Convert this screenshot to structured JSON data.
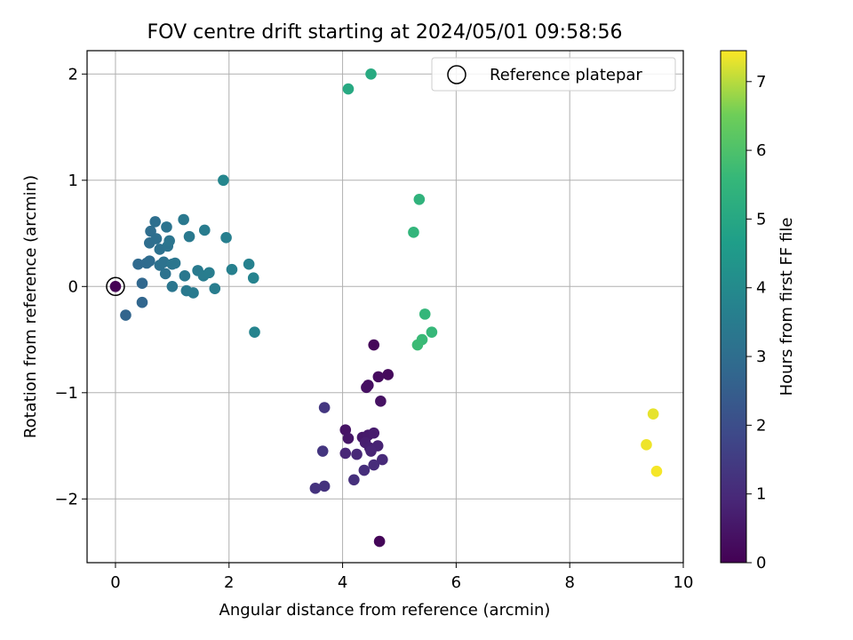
{
  "chart_data": {
    "type": "scatter",
    "title": "FOV centre drift starting at 2024/05/01 09:58:56",
    "xlabel": "Angular distance from reference (arcmin)",
    "ylabel": "Rotation from reference (arcmin)",
    "xlim": [
      -0.5,
      10
    ],
    "ylim": [
      -2.6,
      2.22
    ],
    "xticks": [
      0,
      2,
      4,
      6,
      8,
      10
    ],
    "xtick_labels": [
      "0",
      "2",
      "4",
      "6",
      "8",
      "10"
    ],
    "yticks": [
      -2,
      -1,
      0,
      1,
      2
    ],
    "ytick_labels": [
      "−2",
      "−1",
      "0",
      "1",
      "2"
    ],
    "grid": true,
    "legend": {
      "placement": "top-right",
      "entries": [
        "Reference platepar"
      ]
    },
    "reference_point": {
      "x": 0,
      "y": 0
    },
    "colorbar": {
      "label": "Hours from first FF file",
      "range": [
        0,
        7.45
      ],
      "ticks": [
        0,
        1,
        2,
        3,
        4,
        5,
        6,
        7
      ],
      "tick_labels": [
        "0",
        "1",
        "2",
        "3",
        "4",
        "5",
        "6",
        "7"
      ],
      "colormap": "viridis"
    },
    "points": [
      {
        "x": 0.0,
        "y": 0.0,
        "c": 0.0
      },
      {
        "x": 4.55,
        "y": -0.55,
        "c": 0.15
      },
      {
        "x": 4.8,
        "y": -0.83,
        "c": 0.2
      },
      {
        "x": 4.63,
        "y": -0.85,
        "c": 0.25
      },
      {
        "x": 4.45,
        "y": -0.93,
        "c": 0.3
      },
      {
        "x": 4.42,
        "y": -0.95,
        "c": 0.35
      },
      {
        "x": 4.67,
        "y": -1.08,
        "c": 0.4
      },
      {
        "x": 4.05,
        "y": -1.35,
        "c": 0.45
      },
      {
        "x": 4.1,
        "y": -1.43,
        "c": 0.5
      },
      {
        "x": 4.35,
        "y": -1.42,
        "c": 0.55
      },
      {
        "x": 4.45,
        "y": -1.4,
        "c": 0.6
      },
      {
        "x": 4.55,
        "y": -1.38,
        "c": 0.65
      },
      {
        "x": 4.4,
        "y": -1.47,
        "c": 0.7
      },
      {
        "x": 4.48,
        "y": -1.52,
        "c": 0.75
      },
      {
        "x": 4.62,
        "y": -1.5,
        "c": 0.8
      },
      {
        "x": 4.5,
        "y": -1.55,
        "c": 0.85
      },
      {
        "x": 4.05,
        "y": -1.57,
        "c": 0.9
      },
      {
        "x": 4.25,
        "y": -1.58,
        "c": 0.95
      },
      {
        "x": 4.7,
        "y": -1.63,
        "c": 1.0
      },
      {
        "x": 4.55,
        "y": -1.68,
        "c": 1.05
      },
      {
        "x": 4.38,
        "y": -1.73,
        "c": 1.1
      },
      {
        "x": 4.2,
        "y": -1.82,
        "c": 1.15
      },
      {
        "x": 3.68,
        "y": -1.88,
        "c": 1.2
      },
      {
        "x": 3.52,
        "y": -1.9,
        "c": 1.25
      },
      {
        "x": 3.65,
        "y": -1.55,
        "c": 1.3
      },
      {
        "x": 3.68,
        "y": -1.14,
        "c": 1.35
      },
      {
        "x": 4.65,
        "y": -2.4,
        "c": 0.1
      },
      {
        "x": 0.18,
        "y": -0.27,
        "c": 2.7
      },
      {
        "x": 0.47,
        "y": -0.15,
        "c": 2.75
      },
      {
        "x": 0.47,
        "y": 0.03,
        "c": 2.8
      },
      {
        "x": 0.4,
        "y": 0.21,
        "c": 2.85
      },
      {
        "x": 0.55,
        "y": 0.22,
        "c": 2.9
      },
      {
        "x": 0.6,
        "y": 0.24,
        "c": 2.95
      },
      {
        "x": 0.6,
        "y": 0.41,
        "c": 3.0
      },
      {
        "x": 0.62,
        "y": 0.52,
        "c": 3.0
      },
      {
        "x": 0.7,
        "y": 0.61,
        "c": 3.05
      },
      {
        "x": 0.72,
        "y": 0.45,
        "c": 3.05
      },
      {
        "x": 0.78,
        "y": 0.35,
        "c": 3.1
      },
      {
        "x": 0.78,
        "y": 0.2,
        "c": 3.1
      },
      {
        "x": 0.85,
        "y": 0.23,
        "c": 3.15
      },
      {
        "x": 0.88,
        "y": 0.12,
        "c": 3.15
      },
      {
        "x": 0.9,
        "y": 0.56,
        "c": 3.2
      },
      {
        "x": 0.92,
        "y": 0.38,
        "c": 3.2
      },
      {
        "x": 0.95,
        "y": 0.43,
        "c": 3.25
      },
      {
        "x": 1.0,
        "y": 0.21,
        "c": 3.25
      },
      {
        "x": 1.05,
        "y": 0.22,
        "c": 3.3
      },
      {
        "x": 1.0,
        "y": 0.0,
        "c": 3.3
      },
      {
        "x": 1.2,
        "y": 0.63,
        "c": 3.35
      },
      {
        "x": 1.22,
        "y": 0.1,
        "c": 3.35
      },
      {
        "x": 1.25,
        "y": -0.04,
        "c": 3.4
      },
      {
        "x": 1.3,
        "y": 0.47,
        "c": 3.4
      },
      {
        "x": 1.37,
        "y": -0.06,
        "c": 3.45
      },
      {
        "x": 1.45,
        "y": 0.15,
        "c": 3.45
      },
      {
        "x": 1.55,
        "y": 0.1,
        "c": 3.5
      },
      {
        "x": 1.57,
        "y": 0.53,
        "c": 3.5
      },
      {
        "x": 1.65,
        "y": 0.13,
        "c": 3.55
      },
      {
        "x": 1.75,
        "y": -0.02,
        "c": 3.55
      },
      {
        "x": 1.95,
        "y": 0.46,
        "c": 3.6
      },
      {
        "x": 2.05,
        "y": 0.16,
        "c": 3.65
      },
      {
        "x": 2.35,
        "y": 0.21,
        "c": 3.7
      },
      {
        "x": 2.43,
        "y": 0.08,
        "c": 3.75
      },
      {
        "x": 2.45,
        "y": -0.43,
        "c": 3.8
      },
      {
        "x": 1.9,
        "y": 1.0,
        "c": 3.85
      },
      {
        "x": 4.1,
        "y": 1.86,
        "c": 5.05
      },
      {
        "x": 4.5,
        "y": 2.0,
        "c": 5.1
      },
      {
        "x": 5.35,
        "y": 0.82,
        "c": 5.4
      },
      {
        "x": 5.25,
        "y": 0.51,
        "c": 5.5
      },
      {
        "x": 5.45,
        "y": -0.26,
        "c": 5.55
      },
      {
        "x": 5.57,
        "y": -0.43,
        "c": 5.6
      },
      {
        "x": 5.4,
        "y": -0.5,
        "c": 5.65
      },
      {
        "x": 5.32,
        "y": -0.55,
        "c": 5.7
      },
      {
        "x": 9.47,
        "y": -1.2,
        "c": 7.3
      },
      {
        "x": 9.35,
        "y": -1.49,
        "c": 7.35
      },
      {
        "x": 9.53,
        "y": -1.74,
        "c": 7.4
      }
    ]
  }
}
